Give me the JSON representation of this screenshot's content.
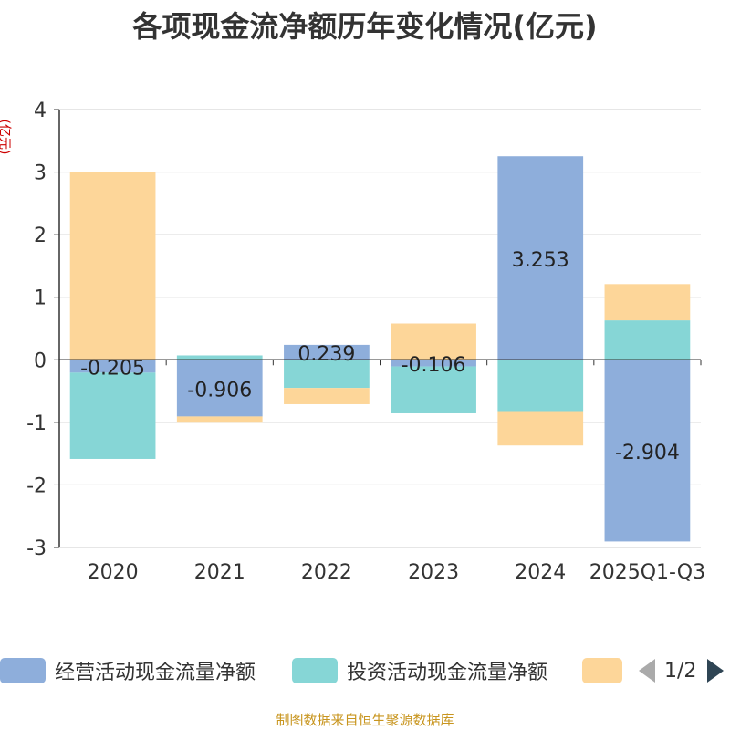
{
  "title": "各项现金流净额历年变化情况(亿元)",
  "y_unit": "(亿元)",
  "source": "制图数据来自恒生聚源数据库",
  "legend": {
    "items": [
      {
        "label": "经营活动现金流量净额",
        "color": "#8eaedb"
      },
      {
        "label": "投资活动现金流量净额",
        "color": "#86d6d6"
      },
      {
        "label": "",
        "color": "#fdd699"
      }
    ],
    "page": "1/2"
  },
  "chart_data": {
    "type": "bar",
    "stacked": true,
    "categories": [
      "2020",
      "2021",
      "2022",
      "2023",
      "2024",
      "2025Q1-Q3"
    ],
    "ylim": [
      -3,
      4
    ],
    "yticks": [
      -3,
      -2,
      -1,
      0,
      1,
      2,
      3,
      4
    ],
    "grid": true,
    "series": [
      {
        "name": "经营活动现金流量净额",
        "color": "#8eaedb",
        "values": [
          -0.205,
          -0.906,
          0.239,
          -0.106,
          3.253,
          -2.904
        ],
        "labels": [
          "-0.205",
          "-0.906",
          "0.239",
          "-0.106",
          "3.253",
          "-2.904"
        ]
      },
      {
        "name": "投资活动现金流量净额",
        "color": "#86d6d6",
        "values": [
          -1.38,
          0.07,
          -0.45,
          -0.75,
          -0.82,
          0.63
        ],
        "labels": []
      },
      {
        "name": "",
        "color": "#fdd699",
        "values": [
          3.0,
          -0.1,
          -0.26,
          0.58,
          -0.55,
          0.58
        ],
        "labels": []
      }
    ]
  }
}
